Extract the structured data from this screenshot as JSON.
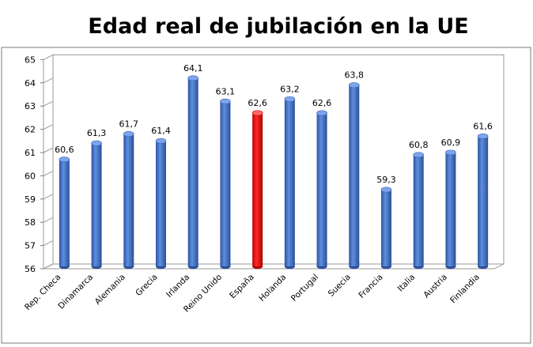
{
  "chart_data": {
    "type": "bar",
    "title": "Edad real de jubilación en la UE",
    "categories": [
      "Rep. Checa",
      "Dinamarca",
      "Alemania",
      "Grecia",
      "Irlanda",
      "Reino Unido",
      "España",
      "Holanda",
      "Portugal",
      "Suecia",
      "Francia",
      "Italia",
      "Austria",
      "Finlandia"
    ],
    "values": [
      60.6,
      61.3,
      61.7,
      61.4,
      64.1,
      63.1,
      62.6,
      63.2,
      62.6,
      63.8,
      59.3,
      60.8,
      60.9,
      61.6
    ],
    "value_labels": [
      "60,6",
      "61,3",
      "61,7",
      "61,4",
      "64,1",
      "63,1",
      "62,6",
      "63,2",
      "62,6",
      "63,8",
      "59,3",
      "60,8",
      "60,9",
      "61,6"
    ],
    "ylim": [
      56,
      65
    ],
    "yticks": [
      "56",
      "57",
      "58",
      "59",
      "60",
      "61",
      "62",
      "63",
      "64",
      "65"
    ],
    "grid": false,
    "legend": "none",
    "bar_color": "#3a6dc0",
    "highlight_category": "España",
    "highlight_color": "#ee1111",
    "xlabel": "",
    "ylabel": ""
  }
}
